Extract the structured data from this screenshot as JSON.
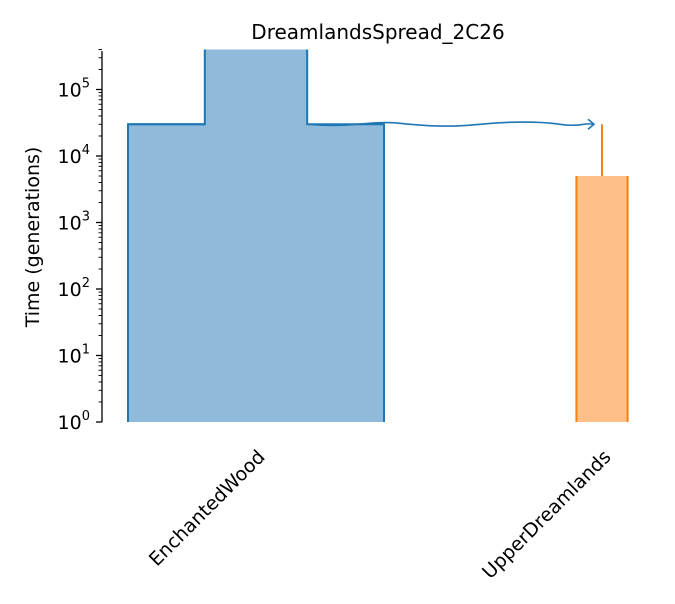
{
  "chart_data": {
    "type": "demography",
    "title": "DreamlandsSpread_2C26",
    "ylabel": "Time (generations)",
    "y_scale": "log",
    "ylim": [
      1,
      400000
    ],
    "y_ticks": [
      {
        "value": 1,
        "base": "10",
        "exp": "0"
      },
      {
        "value": 10,
        "base": "10",
        "exp": "1"
      },
      {
        "value": 100,
        "base": "10",
        "exp": "2"
      },
      {
        "value": 1000,
        "base": "10",
        "exp": "3"
      },
      {
        "value": 10000,
        "base": "10",
        "exp": "4"
      },
      {
        "value": 100000,
        "base": "10",
        "exp": "5"
      }
    ],
    "demes": [
      {
        "name": "EnchantedWood",
        "color": "#1f77b4",
        "fill": "#8fbad9",
        "epochs": [
          {
            "start_time": 30000,
            "end_time": 1,
            "size": 25000
          },
          {
            "start_time": 400000,
            "end_time": 30000,
            "size": 10000
          }
        ]
      },
      {
        "name": "UpperDreamlands",
        "color": "#ff7f0e",
        "fill": "#ffbf86",
        "ancestor": "EnchantedWood",
        "split_time": 30000,
        "epochs": [
          {
            "start_time": 5000,
            "end_time": 1,
            "size": 5000
          }
        ]
      }
    ]
  }
}
